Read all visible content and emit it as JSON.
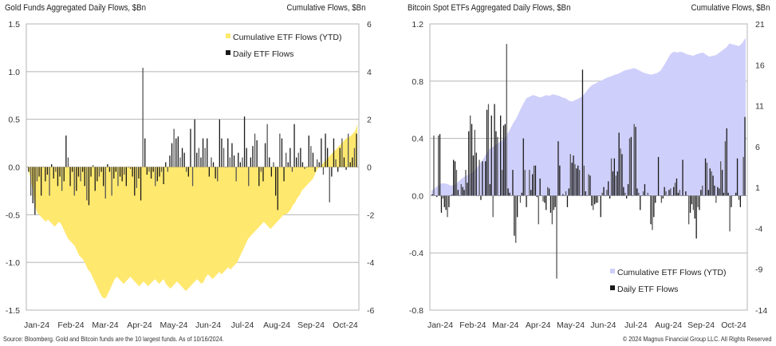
{
  "chart_data": [
    {
      "type": "bar",
      "title": "Gold Funds Aggregated Daily Flows, $Bn",
      "right_title": "Cumulative Flows, $Bn",
      "ylim": [
        -1.5,
        1.5
      ],
      "y2lim": [
        -6,
        6
      ],
      "yticks": [
        "1.5",
        "1.0",
        "0.5",
        "0.0",
        "-0.5",
        "-1.0",
        "-1.5"
      ],
      "y2ticks": [
        "6",
        "4",
        "2",
        "0",
        "-2",
        "-4",
        "-6"
      ],
      "xticks": [
        "Jan-24",
        "Feb-24",
        "Mar-24",
        "Apr-24",
        "May-24",
        "Jun-24",
        "Jul-24",
        "Aug-24",
        "Sep-24",
        "Oct-24"
      ],
      "grid": true,
      "legend": {
        "placement": "top-right",
        "entries": [
          "Cumulative ETF Flows (YTD)",
          "Daily ETF Flows"
        ]
      },
      "colors": {
        "cumulative": "#FFE86E",
        "daily": "#1a1a1a"
      },
      "series": [
        {
          "name": "Cumulative ETF Flows (YTD)",
          "axis": "right",
          "kind": "area",
          "values": [
            -0.1,
            -0.4,
            -0.9,
            -1.5,
            -1.9,
            -2.0,
            -2.1,
            -2.2,
            -2.3,
            -2.2,
            -2.3,
            -2.4,
            -2.5,
            -2.4,
            -2.3,
            -2.4,
            -2.6,
            -2.8,
            -3.0,
            -3.1,
            -3.2,
            -3.3,
            -3.5,
            -3.7,
            -3.8,
            -3.9,
            -4.1,
            -4.3,
            -4.4,
            -4.6,
            -4.8,
            -5.0,
            -5.2,
            -5.4,
            -5.5,
            -5.5,
            -5.3,
            -5.1,
            -4.9,
            -4.7,
            -4.6,
            -4.7,
            -4.8,
            -4.9,
            -4.8,
            -4.7,
            -4.6,
            -4.7,
            -4.8,
            -4.9,
            -5.0,
            -4.9,
            -4.8,
            -4.9,
            -5.0,
            -4.9,
            -4.8,
            -4.7,
            -4.8,
            -4.9,
            -4.8,
            -4.7,
            -4.9,
            -5.0,
            -5.1,
            -5.0,
            -4.9,
            -4.8,
            -4.9,
            -5.0,
            -5.1,
            -5.2,
            -5.1,
            -5.0,
            -4.9,
            -4.8,
            -4.7,
            -4.8,
            -4.9,
            -4.8,
            -4.6,
            -4.5,
            -4.6,
            -4.7,
            -4.6,
            -4.5,
            -4.4,
            -4.5,
            -4.4,
            -4.3,
            -4.2,
            -4.3,
            -4.2,
            -4.1,
            -4.0,
            -3.8,
            -3.6,
            -3.4,
            -3.2,
            -3.0,
            -2.9,
            -2.8,
            -2.7,
            -2.6,
            -2.5,
            -2.4,
            -2.3,
            -2.4,
            -2.5,
            -2.6,
            -2.5,
            -2.4,
            -2.3,
            -2.2,
            -2.1,
            -2.0,
            -2.0,
            -1.9,
            -1.8,
            -1.6,
            -1.5,
            -1.3,
            -1.2,
            -1.0,
            -0.9,
            -0.8,
            -0.7,
            -0.6,
            -0.5,
            -0.3,
            -0.1,
            0.0,
            0.1,
            0.2,
            0.3,
            0.4,
            0.5,
            0.6,
            0.7,
            0.8,
            0.9,
            1.0,
            1.1,
            1.2,
            1.25,
            1.3,
            1.4,
            1.5,
            1.8
          ]
        },
        {
          "name": "Daily ETF Flows",
          "axis": "left",
          "kind": "bar",
          "values": [
            -0.05,
            -0.3,
            -0.38,
            -0.5,
            -0.15,
            -0.1,
            -0.3,
            0.0,
            -0.15,
            -0.08,
            -0.3,
            0.03,
            -0.12,
            -0.05,
            -0.2,
            -0.1,
            -0.25,
            -0.15,
            0.33,
            0.1,
            -0.2,
            -0.05,
            -0.3,
            -0.25,
            -0.1,
            -0.15,
            -0.05,
            -0.2,
            -0.35,
            -0.4,
            -0.1,
            0.02,
            -0.25,
            -0.15,
            -0.1,
            -0.05,
            -0.2,
            -0.33,
            0.03,
            -0.05,
            -0.3,
            -0.12,
            -0.05,
            -0.2,
            -0.1,
            -0.15,
            -0.08,
            -0.2,
            0.0,
            -0.02,
            -0.1,
            -0.3,
            -0.22,
            -0.12,
            -0.35,
            1.04,
            0.3,
            -0.08,
            -0.05,
            -0.12,
            -0.05,
            -0.2,
            -0.15,
            -0.1,
            -0.05,
            -0.18,
            0.05,
            -0.05,
            0.12,
            0.25,
            0.4,
            0.3,
            0.32,
            0.1,
            0.2,
            0.15,
            -0.05,
            -0.1,
            0.4,
            -0.2,
            0.5,
            0.15,
            0.2,
            0.1,
            0.3,
            0.2,
            0.3,
            -0.1,
            0.1,
            0.05,
            -0.12,
            -0.15,
            0.5,
            0.3,
            0.2,
            0.0,
            0.3,
            0.1,
            0.25,
            0.12,
            -0.15,
            0.15,
            0.05,
            0.1,
            0.53,
            0.2,
            -0.2,
            0.1,
            0.22,
            0.35,
            0.28,
            -0.2,
            -0.05,
            -0.15,
            0.25,
            0.45,
            0.1,
            -0.1,
            0.05,
            -0.3,
            -0.45,
            0.35,
            0.3,
            -0.15,
            0.15,
            0.05,
            0.2,
            -0.05,
            0.45,
            0.1,
            0.15,
            0.2,
            0.05,
            -0.02,
            0.0,
            0.33,
            0.22,
            0.15,
            -0.05,
            0.08,
            0.05,
            0.3,
            -0.08,
            0.35,
            0.2,
            -0.37,
            -0.1,
            0.3,
            0.08,
            -0.05,
            0.2,
            0.3,
            0.1,
            -0.03,
            0.35,
            0.05,
            0.1,
            0.2,
            0.35
          ]
        }
      ]
    },
    {
      "type": "bar",
      "title": "Bitcoin Spot ETFs Aggregated Daily Flows, $Bn",
      "right_title": "Cumulative Flows, $Bn",
      "ylim": [
        -0.8,
        1.2
      ],
      "y2lim": [
        -14,
        21
      ],
      "yticks": [
        "1.2",
        "0.8",
        "0.4",
        "0.0",
        "-0.4",
        "-0.8"
      ],
      "y2ticks": [
        "21",
        "16",
        "11",
        "6",
        "1",
        "-4",
        "-9",
        "-14"
      ],
      "xticks": [
        "Jan-24",
        "Feb-24",
        "Mar-24",
        "Apr-24",
        "May-24",
        "Jun-24",
        "Jul-24",
        "Aug-24",
        "Sep-24",
        "Oct-24"
      ],
      "grid": true,
      "legend": {
        "placement": "bottom-right",
        "entries": [
          "Cumulative ETF Flows (YTD)",
          "Daily ETF Flows"
        ]
      },
      "colors": {
        "cumulative": "#CFCFFB",
        "daily": "#1a1a1a"
      },
      "series": [
        {
          "name": "Cumulative ETF Flows (YTD)",
          "axis": "right",
          "kind": "area",
          "values": [
            0.6,
            0.9,
            1.2,
            1.5,
            1.5,
            1.4,
            1.2,
            1.3,
            1.6,
            2.0,
            2.3,
            2.5,
            2.7,
            3.0,
            3.5,
            4.0,
            4.6,
            5.3,
            5.8,
            6.0,
            6.3,
            6.6,
            6.9,
            7.4,
            8.1,
            8.9,
            9.5,
            10.4,
            11.2,
            11.9,
            12.1,
            12.3,
            12.2,
            12.0,
            12.1,
            12.3,
            12.2,
            12.4,
            12.3,
            12.2,
            12.0,
            11.9,
            11.6,
            11.5,
            11.7,
            11.9,
            12.1,
            12.6,
            13.1,
            13.5,
            13.7,
            13.9,
            14.1,
            14.3,
            14.5,
            14.6,
            14.8,
            14.9,
            15.1,
            15.3,
            15.4,
            15.5,
            15.6,
            15.4,
            15.2,
            15.0,
            14.9,
            14.8,
            14.9,
            15.0,
            15.3,
            15.9,
            16.6,
            17.3,
            17.6,
            17.5,
            17.6,
            17.5,
            17.3,
            17.2,
            17.1,
            17.3,
            17.4,
            17.5,
            17.2,
            17.0,
            17.1,
            17.2,
            17.5,
            17.8,
            18.1,
            18.6,
            18.5,
            18.4,
            18.3,
            18.7,
            19.3
          ]
        },
        {
          "name": "Daily ETF Flows",
          "axis": "left",
          "kind": "bar",
          "values": [
            0.01,
            0.42,
            0.0,
            -0.01,
            0.42,
            0.43,
            -0.12,
            -0.02,
            -0.08,
            -0.1,
            -0.15,
            -0.08,
            0.0,
            0.01,
            0.25,
            0.24,
            0.18,
            0.04,
            0.0,
            0.08,
            0.06,
            0.04,
            0.18,
            0.09,
            0.45,
            0.56,
            0.5,
            0.28,
            0.46,
            0.3,
            0.0,
            0.25,
            -0.03,
            0.24,
            0.0,
            0.24,
            0.6,
            0.64,
            0.08,
            0.56,
            -0.15,
            0.64,
            0.45,
            0.41,
            0.0,
            0.56,
            0.18,
            0.49,
            0.5,
            1.06,
            0.05,
            0.02,
            0.0,
            0.18,
            -0.28,
            -0.33,
            -0.15,
            0.0,
            -0.05,
            0.02,
            0.4,
            0.18,
            -0.08,
            0.0,
            0.18,
            0.04,
            0.15,
            0.21,
            0.21,
            -0.01,
            -0.2,
            0.12,
            0.0,
            -0.04,
            -0.05,
            -0.1,
            0.06,
            0.05,
            -0.12,
            -0.2,
            -0.1,
            -0.08,
            -0.58,
            0.38,
            0.21,
            0.0,
            0.01,
            0.0,
            0.03,
            -0.08,
            0.05,
            0.29,
            0.23,
            0.28,
            0.22,
            0.19,
            0.21,
            0.18,
            0.0,
            0.88,
            0.21,
            0.03,
            0.0,
            0.15,
            0.14,
            -0.07,
            -0.1,
            -0.06,
            -0.05,
            -0.05,
            0.0,
            -0.15,
            0.02,
            0.06,
            0.0,
            0.04,
            0.1,
            -0.02,
            0.26,
            0.17,
            0.26,
            0.14,
            0.17,
            0.44,
            0.33,
            0.29,
            0.06,
            0.02,
            -0.02,
            0.08,
            0.4,
            0.41,
            0.0,
            0.5,
            0.48,
            0.05,
            0.02,
            -0.1,
            0.0,
            0.03,
            0.08,
            0.0,
            0.02,
            0.0,
            -0.2,
            -0.24,
            -0.15,
            -0.05,
            0.0,
            0.27,
            0.0,
            -0.05,
            -0.02,
            0.06,
            0.03,
            0.0,
            0.04,
            0.05,
            0.0,
            0.06,
            0.09,
            0.12,
            0.02,
            0.04,
            0.0,
            0.25,
            0.0,
            0.03,
            0.0,
            -0.2,
            -0.12,
            -0.06,
            -0.1,
            -0.16,
            -0.3,
            -0.08,
            -0.1,
            0.04,
            0.07,
            0.0,
            0.26,
            0.23,
            0.04,
            0.19,
            0.17,
            0.14,
            0.07,
            -0.05,
            0.06,
            0.05,
            0.24,
            0.18,
            0.02,
            0.38,
            0.47,
            0.02,
            -0.25,
            -0.08,
            0.0,
            0.0,
            0.02,
            0.26,
            -0.03,
            -0.08,
            0.0,
            0.27,
            0.55
          ]
        }
      ]
    }
  ],
  "footer": {
    "source": "Source: Bloomberg. Gold and Bitcoin funds are the 10 largest funds. As of 10/16/2024.",
    "copyright": "© 2024 Magnus Financial Group LLC. All Rights Reserved"
  }
}
